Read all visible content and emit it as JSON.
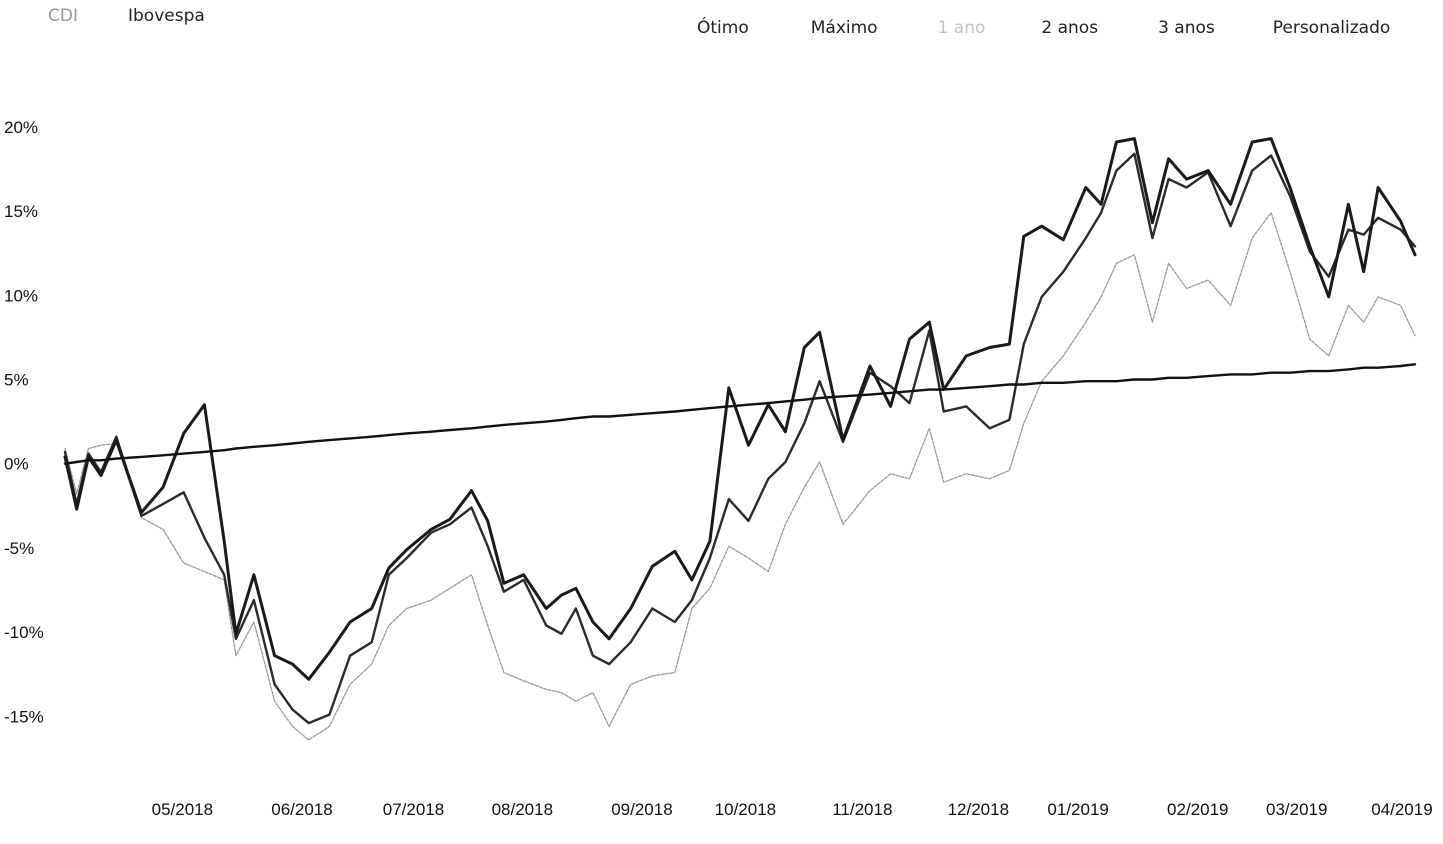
{
  "legend": {
    "cdi": "CDI",
    "ibovespa": "Ibovespa"
  },
  "periods": [
    "Ótimo",
    "Máximo",
    "1 ano",
    "2 anos",
    "3 anos",
    "Personalizado"
  ],
  "colors": {
    "line_dark": "#1a1a1a",
    "line_mid": "#2b2b2b",
    "line_light": "#9a9a9a",
    "cdi": "#111111"
  },
  "chart_data": {
    "type": "line",
    "ylim": [
      -17,
      21
    ],
    "y_ticks": [
      20,
      15,
      10,
      5,
      0,
      -5,
      -10,
      -15
    ],
    "y_tick_labels": [
      "20%",
      "15%",
      "10%",
      "5%",
      "0%",
      "-5%",
      "-10%",
      "-15%"
    ],
    "x_ticks": [
      0,
      13.3,
      25.7,
      37.8,
      51.1,
      62.6,
      75.6,
      88.5,
      99.6,
      112.9,
      123.9,
      135.6
    ],
    "x_tick_labels": [
      "05/2018",
      "06/2018",
      "07/2018",
      "08/2018",
      "09/2018",
      "10/2018",
      "11/2018",
      "12/2018",
      "01/2019",
      "02/2019",
      "03/2019",
      "04/2019"
    ],
    "xlim": [
      -6.6,
      143.5
    ],
    "x": [
      -6.6,
      -5.3,
      -4,
      -2.6,
      -0.9,
      1.9,
      4.3,
      6.6,
      8.9,
      11.1,
      12.4,
      14.4,
      16.7,
      18.7,
      20.5,
      22.8,
      25.1,
      27.5,
      29.4,
      31.4,
      34.1,
      36.2,
      38.6,
      40.4,
      42.2,
      44.4,
      46.9,
      48.6,
      50.2,
      52.1,
      53.9,
      56.3,
      58.7,
      61.2,
      63.1,
      65.1,
      67.2,
      69.4,
      71.6,
      73.5,
      75.6,
      77.3,
      79.9,
      82.9,
      85.2,
      87.3,
      89.5,
      91.1,
      93.6,
      96.2,
      98.4,
      100,
      102,
      104.4,
      106.9,
      108.6,
      110.3,
      112.3,
      114.3,
      116.1,
      118.1,
      120.5,
      123,
      125.4,
      127.5,
      129.6,
      131.8,
      133.9,
      136.1,
      137.8,
      139.4,
      141.9,
      143.5
    ],
    "series": [
      {
        "values": [
          0.4,
          -2.7,
          0.4,
          -0.7,
          1.4,
          -2.9,
          -1.4,
          1.8,
          3.5,
          -4.6,
          -10.1,
          -6.6,
          -11.4,
          -11.9,
          -12.8,
          -11.2,
          -9.4,
          -8.6,
          -6.2,
          -5.1,
          -3.9,
          -3.3,
          -1.6,
          -3.4,
          -7.1,
          -6.6,
          -8.6,
          -7.8,
          -7.4,
          -9.4,
          -10.4,
          -8.6,
          -6.1,
          -5.2,
          -6.9,
          -4.6,
          4.5,
          1.1,
          3.5,
          1.9,
          6.9,
          7.8,
          1.4,
          5.8,
          3.4,
          7.4,
          8.4,
          4.4,
          6.4,
          6.9,
          7.1,
          13.5,
          14.1,
          13.3,
          16.4,
          15.4,
          19.1,
          19.3,
          14.3,
          18.1,
          16.9,
          17.4,
          15.4,
          19.1,
          19.3,
          16.4,
          12.9,
          9.9,
          15.4,
          11.4,
          16.4,
          14.4,
          12.4
        ],
        "color": "#1a1a1a"
      },
      {
        "values": [
          0.7,
          -2.4,
          0.6,
          -0.5,
          1.6,
          -3.1,
          -2.4,
          -1.7,
          -4.4,
          -6.6,
          -10.4,
          -8.1,
          -13.1,
          -14.6,
          -15.4,
          -14.9,
          -11.4,
          -10.6,
          -6.6,
          -5.6,
          -4.1,
          -3.6,
          -2.6,
          -4.9,
          -7.6,
          -6.9,
          -9.6,
          -10.1,
          -8.6,
          -11.4,
          -11.9,
          -10.6,
          -8.6,
          -9.4,
          -8.1,
          -5.6,
          -2.1,
          -3.4,
          -0.9,
          0.1,
          2.4,
          4.9,
          1.3,
          5.4,
          4.6,
          3.6,
          7.9,
          3.1,
          3.4,
          2.1,
          2.6,
          7.1,
          9.9,
          11.4,
          13.4,
          14.9,
          17.4,
          18.4,
          13.4,
          16.9,
          16.4,
          17.3,
          14.1,
          17.4,
          18.3,
          15.9,
          12.6,
          11.1,
          13.9,
          13.6,
          14.6,
          13.9,
          12.9
        ],
        "color": "#2b2b2b"
      },
      {
        "values": [
          0.9,
          -1.8,
          0.9,
          1.1,
          1.2,
          -3.2,
          -3.9,
          -5.9,
          -6.4,
          -6.9,
          -11.4,
          -9.4,
          -14.1,
          -15.6,
          -16.4,
          -15.6,
          -13.1,
          -11.9,
          -9.6,
          -8.6,
          -8.1,
          -7.4,
          -6.6,
          -9.6,
          -12.4,
          -12.9,
          -13.4,
          -13.6,
          -14.1,
          -13.6,
          -15.6,
          -13.1,
          -12.6,
          -12.4,
          -8.6,
          -7.4,
          -4.9,
          -5.6,
          -6.4,
          -3.6,
          -1.4,
          0.1,
          -3.6,
          -1.6,
          -0.6,
          -0.9,
          2.1,
          -1.1,
          -0.6,
          -0.9,
          -0.4,
          2.4,
          4.9,
          6.4,
          8.4,
          9.9,
          11.9,
          12.4,
          8.4,
          11.9,
          10.4,
          10.9,
          9.4,
          13.4,
          14.9,
          11.4,
          7.4,
          6.4,
          9.4,
          8.4,
          9.9,
          9.4,
          7.6
        ],
        "color": "#9a9a9a"
      },
      {
        "values": [
          0,
          0.1,
          0.2,
          0.2,
          0.3,
          0.4,
          0.5,
          0.6,
          0.7,
          0.8,
          0.9,
          1,
          1.1,
          1.2,
          1.3,
          1.4,
          1.5,
          1.6,
          1.7,
          1.8,
          1.9,
          2,
          2.1,
          2.2,
          2.3,
          2.4,
          2.5,
          2.6,
          2.7,
          2.8,
          2.8,
          2.9,
          3,
          3.1,
          3.2,
          3.3,
          3.4,
          3.5,
          3.6,
          3.7,
          3.8,
          3.9,
          4,
          4.1,
          4.2,
          4.3,
          4.4,
          4.4,
          4.5,
          4.6,
          4.7,
          4.7,
          4.8,
          4.8,
          4.9,
          4.9,
          4.9,
          5,
          5,
          5.1,
          5.1,
          5.2,
          5.3,
          5.3,
          5.4,
          5.4,
          5.5,
          5.5,
          5.6,
          5.7,
          5.7,
          5.8,
          5.9
        ],
        "color": "#111111"
      }
    ]
  }
}
